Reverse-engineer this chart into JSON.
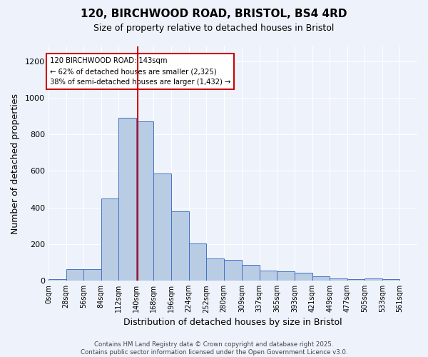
{
  "title": "120, BIRCHWOOD ROAD, BRISTOL, BS4 4RD",
  "subtitle": "Size of property relative to detached houses in Bristol",
  "xlabel": "Distribution of detached houses by size in Bristol",
  "ylabel": "Number of detached properties",
  "bar_values": [
    8,
    65,
    65,
    450,
    890,
    870,
    585,
    380,
    205,
    120,
    115,
    88,
    55,
    50,
    45,
    25,
    12,
    8,
    14,
    10,
    2
  ],
  "bin_edges": [
    0,
    28,
    56,
    84,
    112,
    140,
    168,
    196,
    224,
    252,
    280,
    309,
    337,
    365,
    393,
    421,
    449,
    477,
    505,
    533,
    561,
    589
  ],
  "tick_labels": [
    "0sqm",
    "28sqm",
    "56sqm",
    "84sqm",
    "112sqm",
    "140sqm",
    "168sqm",
    "196sqm",
    "224sqm",
    "252sqm",
    "280sqm",
    "309sqm",
    "337sqm",
    "365sqm",
    "393sqm",
    "421sqm",
    "449sqm",
    "477sqm",
    "505sqm",
    "533sqm",
    "561sqm"
  ],
  "property_size": 143,
  "bar_color": "#b8cce4",
  "bar_edge_color": "#4472c4",
  "vline_color": "#cc0000",
  "background_color": "#eef2fa",
  "grid_color": "#ffffff",
  "annotation_text": "120 BIRCHWOOD ROAD: 143sqm\n← 62% of detached houses are smaller (2,325)\n38% of semi-detached houses are larger (1,432) →",
  "annotation_box_color": "#ffffff",
  "annotation_box_edge": "#cc0000",
  "footer_text": "Contains HM Land Registry data © Crown copyright and database right 2025.\nContains public sector information licensed under the Open Government Licence v3.0.",
  "ylim": [
    0,
    1280
  ],
  "yticks": [
    0,
    200,
    400,
    600,
    800,
    1000,
    1200
  ]
}
